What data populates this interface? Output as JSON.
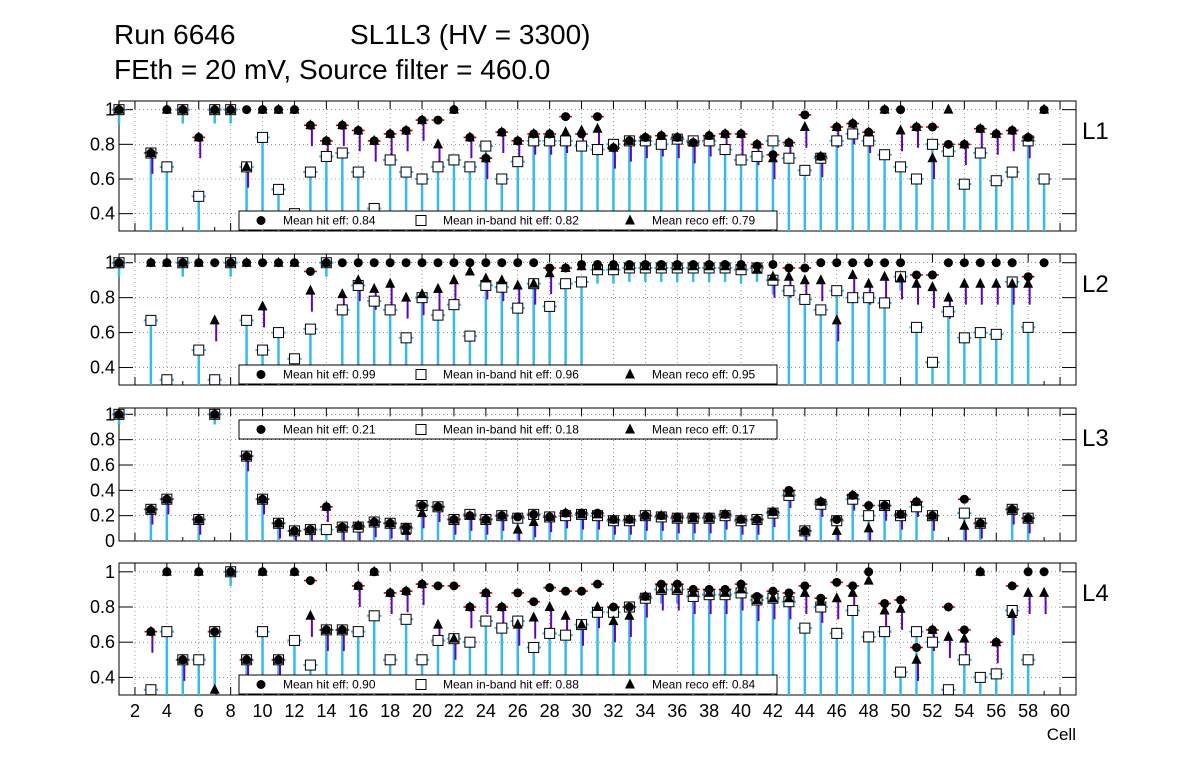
{
  "header": {
    "run": "Run 6646",
    "chamber": "SL1L3 (HV = 3300)",
    "subtitle": "FEth = 20 mV, Source filter = 460.0"
  },
  "chart_data": {
    "type": "scatter",
    "xlabel": "Cell",
    "xlim": [
      1,
      61
    ],
    "x_ticks": [
      "2",
      "4",
      "6",
      "8",
      "10",
      "12",
      "14",
      "16",
      "18",
      "20",
      "22",
      "24",
      "26",
      "28",
      "30",
      "32",
      "34",
      "36",
      "38",
      "40",
      "42",
      "44",
      "46",
      "48",
      "50",
      "52",
      "54",
      "56",
      "58",
      "60"
    ],
    "legend_labels": {
      "hit": "Mean hit  eff: ",
      "inband": "Mean in-band hit eff: ",
      "reco": "Mean reco eff: "
    },
    "colors": {
      "error_bar": "#33bbee",
      "reco_error": "#6600bb",
      "hit_error": "#cc0000",
      "marker": "#000000",
      "open_marker_fill": "#ffffff"
    },
    "panels": [
      {
        "name": "L1",
        "ylim": [
          0.3,
          1.05
        ],
        "yticks": [
          "1",
          "0.8",
          "0.6",
          "0.4"
        ],
        "legend_pos": "bottom",
        "mean_hit": "0.84",
        "mean_inband": "0.82",
        "mean_reco": "0.79",
        "hit": [
          1.0,
          null,
          0.75,
          1.0,
          1.0,
          0.84,
          1.0,
          1.0,
          1.0,
          1.0,
          1.0,
          1.0,
          0.91,
          0.82,
          0.91,
          0.88,
          0.82,
          0.86,
          0.88,
          0.94,
          0.94,
          1.0,
          0.84,
          0.72,
          0.87,
          0.82,
          0.86,
          0.86,
          0.96,
          0.86,
          0.96,
          0.78,
          0.82,
          0.84,
          0.85,
          0.84,
          0.81,
          0.85,
          0.86,
          0.86,
          0.8,
          0.74,
          0.81,
          0.97,
          0.73,
          0.9,
          0.92,
          0.87,
          1.0,
          1.0,
          0.9,
          0.9,
          0.8,
          0.8,
          0.89,
          0.86,
          0.88,
          0.84,
          1.0,
          null
        ],
        "inband": [
          1.0,
          null,
          0.75,
          0.67,
          1.0,
          0.5,
          1.0,
          1.0,
          0.67,
          0.84,
          0.54,
          0.4,
          0.64,
          0.73,
          0.75,
          0.64,
          0.43,
          0.71,
          0.64,
          0.6,
          0.67,
          0.71,
          0.67,
          0.79,
          0.6,
          0.7,
          0.82,
          0.82,
          0.82,
          0.79,
          0.77,
          0.8,
          0.82,
          0.82,
          0.8,
          0.83,
          0.82,
          0.82,
          0.77,
          0.71,
          0.73,
          0.82,
          0.72,
          0.65,
          0.72,
          0.82,
          0.86,
          0.82,
          0.74,
          0.67,
          0.6,
          0.8,
          0.76,
          0.57,
          0.75,
          0.59,
          0.64,
          0.82,
          0.6,
          null
        ],
        "reco": [
          1.0,
          null,
          0.75,
          1.0,
          1.0,
          0.84,
          1.0,
          1.0,
          0.67,
          1.0,
          1.0,
          1.0,
          0.91,
          0.82,
          0.91,
          0.88,
          0.82,
          0.86,
          0.88,
          0.94,
          0.8,
          1.0,
          0.84,
          0.72,
          0.87,
          0.82,
          0.86,
          0.86,
          0.87,
          0.88,
          0.89,
          0.78,
          0.82,
          0.84,
          0.85,
          0.84,
          0.81,
          0.85,
          0.86,
          0.86,
          0.8,
          0.72,
          0.81,
          0.9,
          0.73,
          0.9,
          0.92,
          0.87,
          1.0,
          0.88,
          0.9,
          0.72,
          1.0,
          0.8,
          0.89,
          0.86,
          0.88,
          0.84,
          1.0,
          null
        ]
      },
      {
        "name": "L2",
        "ylim": [
          0.3,
          1.05
        ],
        "yticks": [
          "1",
          "0.8",
          "0.6",
          "0.4"
        ],
        "legend_pos": "bottom",
        "mean_hit": "0.99",
        "mean_inband": "0.96",
        "mean_reco": "0.95",
        "hit": [
          1.0,
          null,
          1.0,
          1.0,
          1.0,
          1.0,
          1.0,
          1.0,
          1.0,
          1.0,
          1.0,
          1.0,
          0.95,
          1.0,
          1.0,
          1.0,
          1.0,
          1.0,
          1.0,
          1.0,
          1.0,
          1.0,
          1.0,
          1.0,
          1.0,
          1.0,
          1.0,
          0.97,
          0.97,
          0.99,
          0.99,
          0.99,
          0.99,
          0.99,
          0.99,
          0.99,
          0.99,
          0.99,
          0.99,
          0.99,
          0.98,
          0.99,
          0.97,
          0.97,
          1.0,
          1.0,
          1.0,
          1.0,
          1.0,
          1.0,
          0.93,
          0.93,
          1.0,
          1.0,
          1.0,
          1.0,
          1.0,
          0.92,
          1.0,
          null
        ],
        "inband": [
          1.0,
          null,
          0.67,
          0.33,
          1.0,
          0.5,
          0.33,
          1.0,
          0.67,
          0.5,
          0.6,
          0.45,
          0.62,
          1.0,
          0.73,
          0.87,
          0.78,
          0.73,
          0.57,
          0.8,
          0.7,
          0.76,
          0.58,
          0.87,
          0.86,
          0.74,
          0.88,
          0.75,
          0.88,
          0.89,
          0.96,
          0.96,
          0.97,
          0.97,
          0.97,
          0.97,
          0.97,
          0.97,
          0.97,
          0.96,
          0.97,
          0.9,
          0.84,
          0.79,
          0.73,
          0.84,
          0.8,
          0.8,
          0.77,
          0.92,
          0.63,
          0.43,
          0.72,
          0.57,
          0.6,
          0.59,
          0.89,
          0.63,
          null,
          null
        ],
        "reco": [
          1.0,
          null,
          1.0,
          1.0,
          1.0,
          1.0,
          0.67,
          1.0,
          1.0,
          0.75,
          1.0,
          1.0,
          0.84,
          1.0,
          0.82,
          0.9,
          0.85,
          0.88,
          0.8,
          0.82,
          0.85,
          0.9,
          0.95,
          0.91,
          0.9,
          0.87,
          0.88,
          0.94,
          0.97,
          0.98,
          0.98,
          0.98,
          0.98,
          0.98,
          0.98,
          0.98,
          0.98,
          0.98,
          0.98,
          0.98,
          0.96,
          0.92,
          0.92,
          0.9,
          0.9,
          0.67,
          0.93,
          0.88,
          0.92,
          0.91,
          0.88,
          0.86,
          0.8,
          0.88,
          0.88,
          0.88,
          0.88,
          0.88,
          null,
          null
        ]
      },
      {
        "name": "L3",
        "ylim": [
          0.0,
          1.05
        ],
        "yticks": [
          "1",
          "0.8",
          "0.6",
          "0.4",
          "0.2",
          "0"
        ],
        "legend_pos": "top",
        "mean_hit": "0.21",
        "mean_inband": "0.18",
        "mean_reco": "0.17",
        "hit": [
          1.0,
          null,
          0.25,
          0.33,
          null,
          0.17,
          1.0,
          null,
          0.67,
          0.33,
          0.14,
          0.08,
          0.09,
          0.27,
          0.11,
          0.12,
          0.15,
          0.14,
          0.11,
          0.28,
          0.27,
          0.17,
          0.2,
          0.17,
          0.2,
          0.19,
          0.21,
          0.19,
          0.22,
          0.22,
          0.22,
          0.17,
          0.17,
          0.2,
          0.2,
          0.19,
          0.19,
          0.19,
          0.21,
          0.17,
          0.17,
          0.23,
          0.4,
          0.08,
          0.31,
          0.17,
          0.36,
          0.28,
          0.28,
          0.21,
          0.31,
          0.2,
          null,
          0.33,
          0.14,
          null,
          0.25,
          0.18,
          null,
          null
        ],
        "inband": [
          1.0,
          null,
          0.25,
          0.33,
          null,
          0.17,
          1.0,
          null,
          0.67,
          0.33,
          0.14,
          0.08,
          0.09,
          0.09,
          0.11,
          0.11,
          0.15,
          0.14,
          0.1,
          0.28,
          0.27,
          0.17,
          0.21,
          0.17,
          0.2,
          0.18,
          0.21,
          0.19,
          0.2,
          0.21,
          0.2,
          0.16,
          0.16,
          0.2,
          0.19,
          0.18,
          0.18,
          0.18,
          0.2,
          0.16,
          0.17,
          0.22,
          0.36,
          0.08,
          0.29,
          0.16,
          0.33,
          0.2,
          0.28,
          0.2,
          0.27,
          0.2,
          null,
          0.22,
          0.14,
          null,
          0.25,
          0.18,
          null,
          null
        ],
        "reco": [
          1.0,
          null,
          0.25,
          0.33,
          null,
          0.17,
          1.0,
          null,
          0.67,
          0.33,
          0.14,
          0.08,
          0.09,
          0.27,
          0.11,
          0.12,
          0.15,
          0.14,
          0.08,
          0.22,
          0.27,
          0.17,
          0.2,
          0.17,
          0.2,
          0.09,
          0.15,
          0.19,
          0.22,
          0.21,
          0.21,
          0.17,
          0.17,
          0.2,
          0.2,
          0.18,
          0.18,
          0.18,
          0.21,
          0.17,
          0.17,
          0.23,
          0.38,
          0.08,
          0.31,
          0.08,
          0.36,
          0.1,
          0.28,
          0.21,
          0.31,
          0.2,
          null,
          0.12,
          0.14,
          null,
          0.25,
          0.18,
          null,
          null
        ]
      },
      {
        "name": "L4",
        "ylim": [
          0.3,
          1.05
        ],
        "yticks": [
          "1",
          "0.8",
          "0.6",
          "0.4"
        ],
        "legend_pos": "bottom",
        "mean_hit": "0.90",
        "mean_inband": "0.88",
        "mean_reco": "0.84",
        "hit": [
          null,
          null,
          0.66,
          1.0,
          0.5,
          1.0,
          0.66,
          1.0,
          0.5,
          1.0,
          0.5,
          1.0,
          0.95,
          0.67,
          0.67,
          0.92,
          1.0,
          0.88,
          0.89,
          0.93,
          0.92,
          0.92,
          0.8,
          0.88,
          0.8,
          0.88,
          0.83,
          0.91,
          0.89,
          0.89,
          0.93,
          0.8,
          0.8,
          0.86,
          0.93,
          0.93,
          0.9,
          0.9,
          0.9,
          0.93,
          0.86,
          0.89,
          0.88,
          0.92,
          0.85,
          0.94,
          0.92,
          1.0,
          0.82,
          0.84,
          0.57,
          0.67,
          0.8,
          0.67,
          1.0,
          0.6,
          0.92,
          1.0,
          1.0,
          null
        ],
        "inband": [
          null,
          null,
          0.33,
          0.66,
          0.5,
          0.5,
          0.66,
          1.0,
          0.5,
          0.66,
          0.5,
          0.61,
          0.47,
          0.67,
          0.67,
          0.66,
          0.75,
          0.5,
          0.73,
          0.5,
          0.61,
          0.62,
          0.6,
          0.72,
          0.68,
          0.72,
          0.57,
          0.65,
          0.64,
          0.7,
          0.77,
          0.77,
          0.8,
          0.85,
          0.9,
          0.9,
          0.86,
          0.87,
          0.87,
          0.88,
          0.84,
          0.85,
          0.83,
          0.68,
          0.8,
          0.65,
          0.78,
          0.63,
          0.66,
          0.43,
          0.66,
          0.6,
          0.33,
          0.5,
          0.4,
          0.42,
          0.78,
          0.5,
          null,
          null
        ],
        "reco": [
          null,
          null,
          0.66,
          1.0,
          0.5,
          1.0,
          0.33,
          1.0,
          0.5,
          1.0,
          0.5,
          1.0,
          0.75,
          0.67,
          0.67,
          0.92,
          1.0,
          0.88,
          0.89,
          0.93,
          0.7,
          0.62,
          0.8,
          0.88,
          0.8,
          0.7,
          0.74,
          0.8,
          0.75,
          0.7,
          0.8,
          0.72,
          0.75,
          0.86,
          0.9,
          0.9,
          0.88,
          0.88,
          0.88,
          0.9,
          0.84,
          0.85,
          0.85,
          0.88,
          0.83,
          0.85,
          0.88,
          0.95,
          0.78,
          0.79,
          0.5,
          0.67,
          0.63,
          0.62,
          1.0,
          0.6,
          0.76,
          0.88,
          0.88,
          null
        ]
      }
    ]
  }
}
